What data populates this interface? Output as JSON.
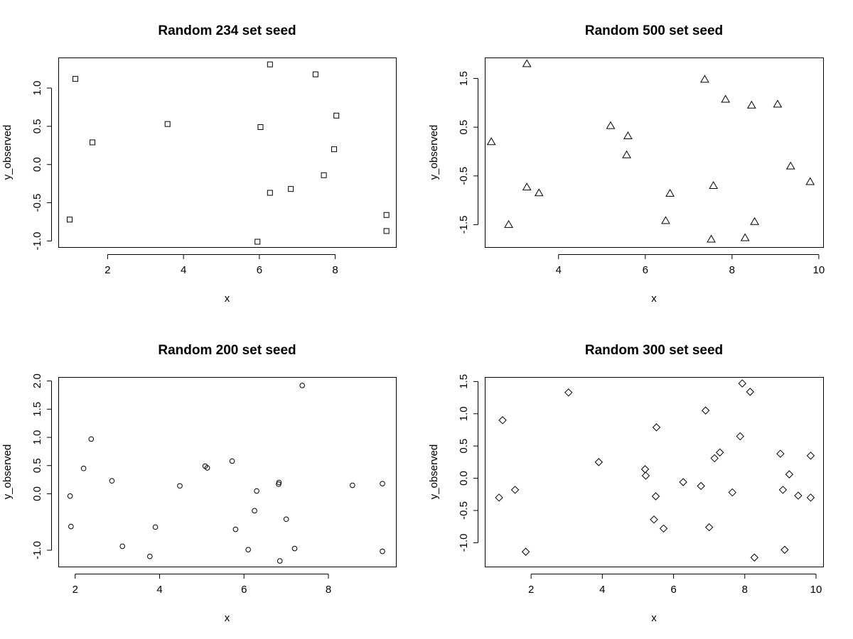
{
  "chart_data": [
    {
      "type": "scatter",
      "title": "Random 234 set seed",
      "xlabel": "x",
      "ylabel": "y_observed",
      "marker": "square",
      "xlim": [
        0.7,
        9.6
      ],
      "ylim": [
        -1.08,
        1.4
      ],
      "xticks": [
        2,
        4,
        6,
        8
      ],
      "xtick_labels": [
        "2",
        "4",
        "6",
        "8"
      ],
      "yticks": [
        -1.0,
        -0.5,
        0.0,
        0.5,
        1.0
      ],
      "ytick_labels": [
        "-1.0",
        "-0.5",
        "0.0",
        "0.5",
        "1.0"
      ],
      "points": [
        {
          "x": 1.0,
          "y": -0.72
        },
        {
          "x": 1.15,
          "y": 1.12
        },
        {
          "x": 1.6,
          "y": 0.29
        },
        {
          "x": 3.58,
          "y": 0.53
        },
        {
          "x": 5.95,
          "y": -1.01
        },
        {
          "x": 6.03,
          "y": 0.49
        },
        {
          "x": 6.28,
          "y": 1.31
        },
        {
          "x": 6.28,
          "y": -0.37
        },
        {
          "x": 6.83,
          "y": -0.32
        },
        {
          "x": 7.48,
          "y": 1.18
        },
        {
          "x": 7.7,
          "y": -0.14
        },
        {
          "x": 7.97,
          "y": 0.2
        },
        {
          "x": 8.03,
          "y": 0.64
        },
        {
          "x": 9.35,
          "y": -0.66
        },
        {
          "x": 9.35,
          "y": -0.87
        }
      ]
    },
    {
      "type": "scatter",
      "title": "Random 500 set seed",
      "xlabel": "x",
      "ylabel": "y_observed",
      "marker": "triangle",
      "xlim": [
        2.3,
        10.1
      ],
      "ylim": [
        -1.96,
        1.93
      ],
      "xticks": [
        4,
        6,
        8,
        10
      ],
      "xtick_labels": [
        "4",
        "6",
        "8",
        "10"
      ],
      "yticks": [
        -1.5,
        -0.5,
        0.5,
        1.5
      ],
      "ytick_labels": [
        "-1.5",
        "-0.5",
        "0.5",
        "1.5"
      ],
      "points": [
        {
          "x": 2.45,
          "y": 0.2
        },
        {
          "x": 2.85,
          "y": -1.5
        },
        {
          "x": 3.27,
          "y": 1.8
        },
        {
          "x": 3.27,
          "y": -0.73
        },
        {
          "x": 3.55,
          "y": -0.85
        },
        {
          "x": 5.2,
          "y": 0.53
        },
        {
          "x": 5.57,
          "y": -0.07
        },
        {
          "x": 5.6,
          "y": 0.32
        },
        {
          "x": 6.47,
          "y": -1.42
        },
        {
          "x": 6.57,
          "y": -0.86
        },
        {
          "x": 7.37,
          "y": 1.48
        },
        {
          "x": 7.52,
          "y": -1.8
        },
        {
          "x": 7.57,
          "y": -0.7
        },
        {
          "x": 7.85,
          "y": 1.07
        },
        {
          "x": 8.3,
          "y": -1.77
        },
        {
          "x": 8.45,
          "y": 0.95
        },
        {
          "x": 8.52,
          "y": -1.44
        },
        {
          "x": 9.05,
          "y": 0.97
        },
        {
          "x": 9.35,
          "y": -0.3
        },
        {
          "x": 9.8,
          "y": -0.62
        }
      ]
    },
    {
      "type": "scatter",
      "title": "Random 200 set seed",
      "xlabel": "x",
      "ylabel": "y_observed",
      "marker": "circle",
      "xlim": [
        1.6,
        9.6
      ],
      "ylim": [
        -1.29,
        2.07
      ],
      "xticks": [
        2,
        4,
        6,
        8
      ],
      "xtick_labels": [
        "2",
        "4",
        "6",
        "8"
      ],
      "yticks": [
        -1.0,
        0.0,
        0.5,
        1.0,
        1.5,
        2.0
      ],
      "ytick_labels": [
        "-1.0",
        "0.0",
        "0.5",
        "1.0",
        "1.5",
        "2.0"
      ],
      "points": [
        {
          "x": 1.88,
          "y": -0.04
        },
        {
          "x": 1.9,
          "y": -0.58
        },
        {
          "x": 2.2,
          "y": 0.45
        },
        {
          "x": 2.38,
          "y": 0.97
        },
        {
          "x": 2.87,
          "y": 0.23
        },
        {
          "x": 3.12,
          "y": -0.93
        },
        {
          "x": 3.77,
          "y": -1.11
        },
        {
          "x": 3.9,
          "y": -0.59
        },
        {
          "x": 4.48,
          "y": 0.14
        },
        {
          "x": 5.08,
          "y": 0.49
        },
        {
          "x": 5.13,
          "y": 0.46
        },
        {
          "x": 5.72,
          "y": 0.58
        },
        {
          "x": 5.8,
          "y": -0.63
        },
        {
          "x": 6.1,
          "y": -0.99
        },
        {
          "x": 6.25,
          "y": -0.3
        },
        {
          "x": 6.3,
          "y": 0.05
        },
        {
          "x": 6.82,
          "y": 0.17
        },
        {
          "x": 6.83,
          "y": 0.2
        },
        {
          "x": 6.85,
          "y": -1.19
        },
        {
          "x": 7.0,
          "y": -0.45
        },
        {
          "x": 7.2,
          "y": -0.97
        },
        {
          "x": 7.38,
          "y": 1.92
        },
        {
          "x": 8.57,
          "y": 0.15
        },
        {
          "x": 9.28,
          "y": 0.18
        },
        {
          "x": 9.28,
          "y": -1.02
        }
      ]
    },
    {
      "type": "scatter",
      "title": "Random 300 set seed",
      "xlabel": "x",
      "ylabel": "y_observed",
      "marker": "diamond",
      "xlim": [
        0.7,
        10.2
      ],
      "ylim": [
        -1.37,
        1.57
      ],
      "xticks": [
        2,
        4,
        6,
        8,
        10
      ],
      "xtick_labels": [
        "2",
        "4",
        "6",
        "8",
        "10"
      ],
      "yticks": [
        -1.0,
        -0.5,
        0.0,
        0.5,
        1.0,
        1.5
      ],
      "ytick_labels": [
        "-1.0",
        "-0.5",
        "0.0",
        "0.5",
        "1.0",
        "1.5"
      ],
      "points": [
        {
          "x": 1.1,
          "y": -0.3
        },
        {
          "x": 1.2,
          "y": 0.9
        },
        {
          "x": 1.55,
          "y": -0.18
        },
        {
          "x": 1.85,
          "y": -1.14
        },
        {
          "x": 3.05,
          "y": 1.33
        },
        {
          "x": 3.9,
          "y": 0.25
        },
        {
          "x": 5.2,
          "y": 0.14
        },
        {
          "x": 5.22,
          "y": 0.04
        },
        {
          "x": 5.45,
          "y": -0.64
        },
        {
          "x": 5.5,
          "y": -0.28
        },
        {
          "x": 5.52,
          "y": 0.79
        },
        {
          "x": 5.72,
          "y": -0.78
        },
        {
          "x": 6.27,
          "y": -0.06
        },
        {
          "x": 6.77,
          "y": -0.12
        },
        {
          "x": 6.9,
          "y": 1.05
        },
        {
          "x": 7.0,
          "y": -0.76
        },
        {
          "x": 7.15,
          "y": 0.31
        },
        {
          "x": 7.3,
          "y": 0.4
        },
        {
          "x": 7.65,
          "y": -0.22
        },
        {
          "x": 7.87,
          "y": 0.65
        },
        {
          "x": 7.93,
          "y": 1.47
        },
        {
          "x": 8.15,
          "y": 1.34
        },
        {
          "x": 8.27,
          "y": -1.23
        },
        {
          "x": 9.0,
          "y": 0.38
        },
        {
          "x": 9.07,
          "y": -0.18
        },
        {
          "x": 9.12,
          "y": -1.11
        },
        {
          "x": 9.25,
          "y": 0.06
        },
        {
          "x": 9.5,
          "y": -0.27
        },
        {
          "x": 9.85,
          "y": 0.35
        },
        {
          "x": 9.85,
          "y": -0.3
        }
      ]
    }
  ]
}
